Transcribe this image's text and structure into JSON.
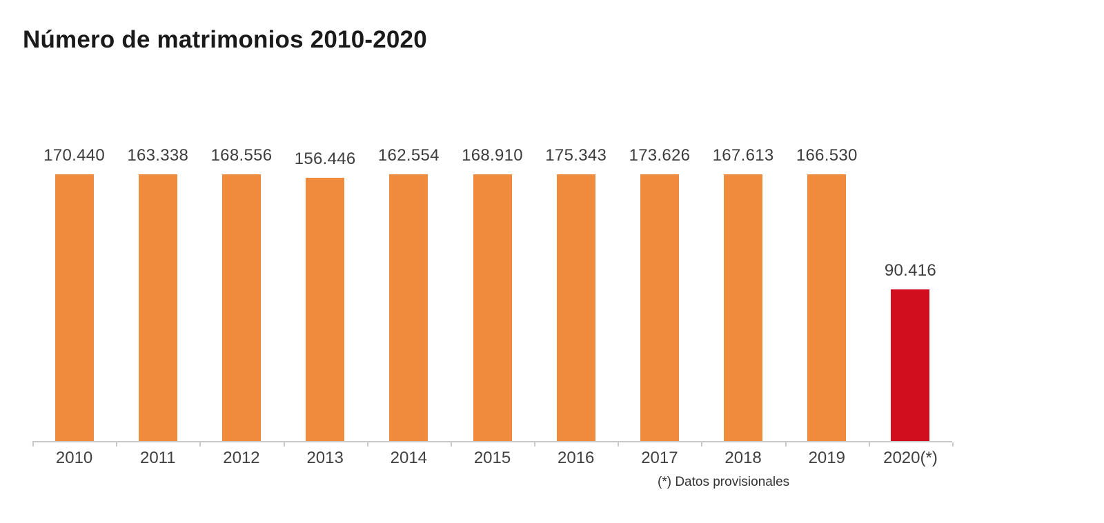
{
  "page": {
    "background": "#ffffff"
  },
  "chart_data": {
    "type": "bar",
    "title": "Número de matrimonios 2010-2020",
    "footnote": "(*) Datos provisionales",
    "categories": [
      "2010",
      "2011",
      "2012",
      "2013",
      "2014",
      "2015",
      "2016",
      "2017",
      "2018",
      "2019",
      "2020(*)"
    ],
    "values": [
      170440,
      163338,
      168556,
      156446,
      162554,
      168910,
      175343,
      173626,
      167613,
      166530,
      90416
    ],
    "value_labels": [
      "170.440",
      "163.338",
      "168.556",
      "156.446",
      "162.554",
      "168.910",
      "175.343",
      "173.626",
      "167.613",
      "166.530",
      "90.416"
    ],
    "bar_color_default": "#F08A3C",
    "bar_color_highlight": "#D10E1E",
    "highlight_index": 10,
    "axis_color": "#C9C9C9",
    "text_color": "#3D3D3D",
    "ylim": [
      0,
      175343
    ],
    "grid": false,
    "legend": false,
    "xlabel": "",
    "ylabel": ""
  }
}
